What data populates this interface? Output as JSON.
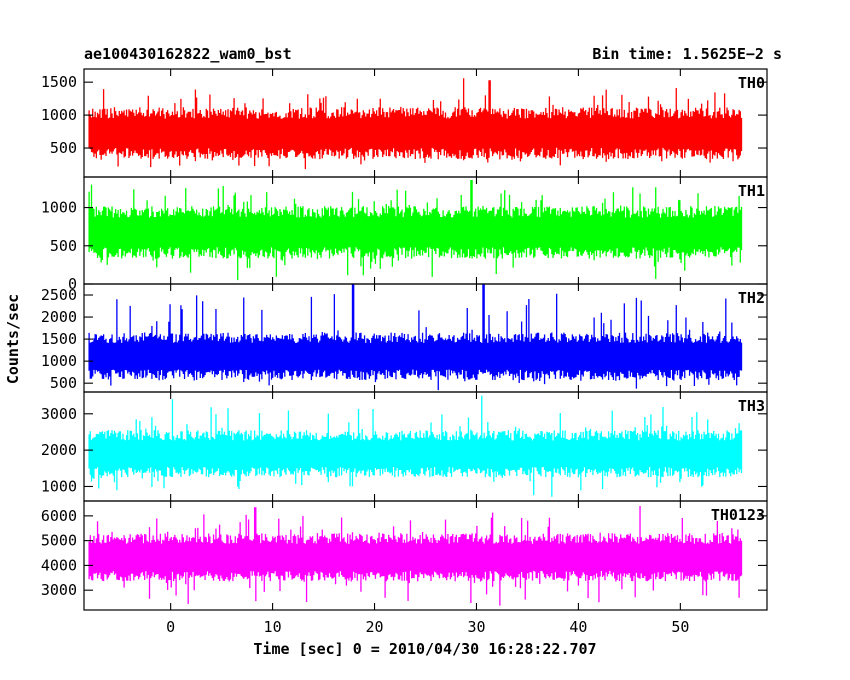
{
  "header": {
    "title": "ae100430162822_wam0_bst",
    "bin_time": "Bin time: 1.5625E−2 s"
  },
  "chart_data": {
    "type": "line",
    "title": "ae100430162822_wam0_bst",
    "subtitle": "Bin time: 1.5625E−2 s",
    "xlabel": "Time [sec] 0 = 2010/04/30 16:28:22.707",
    "ylabel": "Counts/sec",
    "xlim": [
      -8.5,
      58.5
    ],
    "x_range_data": [
      -8.0,
      56.0
    ],
    "x_ticks": [
      0,
      10,
      20,
      30,
      40,
      50
    ],
    "x_tick_labels": [
      "0",
      "10",
      "20",
      "30",
      "40",
      "50"
    ],
    "grid": false,
    "legend": "none",
    "panels": [
      {
        "name": "TH0",
        "color": "#ff0000",
        "ylim": [
          60,
          1700
        ],
        "y_ticks": [
          500,
          1000,
          1500
        ],
        "y_tick_labels": [
          "500",
          "1000",
          "1500"
        ],
        "typical_high": 1120,
        "typical_low": 330,
        "peak_max": 1560,
        "dip_min": 165,
        "notable": [
          [
            0.0,
            480
          ],
          [
            28.7,
            1560
          ],
          [
            31.3,
            1530
          ]
        ]
      },
      {
        "name": "TH1",
        "color": "#00ff00",
        "ylim": [
          0,
          1400
        ],
        "y_ticks": [
          0,
          500,
          1000
        ],
        "y_tick_labels": [
          "0",
          "500",
          "1000"
        ],
        "typical_high": 1020,
        "typical_low": 330,
        "peak_max": 1380,
        "dip_min": 15,
        "notable": [
          [
            -7.8,
            1300
          ],
          [
            29.5,
            1360
          ]
        ]
      },
      {
        "name": "TH2",
        "color": "#0000ff",
        "ylim": [
          300,
          2750
        ],
        "y_ticks": [
          500,
          1000,
          1500,
          2000,
          2500
        ],
        "y_tick_labels": [
          "500",
          "1000",
          "1500",
          "2000",
          "2500"
        ],
        "typical_high": 1650,
        "typical_low": 570,
        "peak_max": 2750,
        "dip_min": 330,
        "notable": [
          [
            17.9,
            2740
          ],
          [
            30.7,
            2740
          ],
          [
            44.5,
            2310
          ],
          [
            54.5,
            2420
          ]
        ]
      },
      {
        "name": "TH3",
        "color": "#00ffff",
        "ylim": [
          600,
          3600
        ],
        "y_ticks": [
          1000,
          2000,
          3000
        ],
        "y_tick_labels": [
          "1000",
          "2000",
          "3000"
        ],
        "typical_high": 2550,
        "typical_low": 1250,
        "peak_max": 3560,
        "dip_min": 700,
        "notable": [
          [
            0.2,
            3400
          ],
          [
            30.5,
            3500
          ]
        ]
      },
      {
        "name": "TH0123",
        "color": "#ff00ff",
        "ylim": [
          2200,
          6600
        ],
        "y_ticks": [
          3000,
          4000,
          5000,
          6000
        ],
        "y_tick_labels": [
          "3000",
          "4000",
          "5000",
          "6000"
        ],
        "typical_high": 5300,
        "typical_low": 3350,
        "peak_max": 6450,
        "dip_min": 2300,
        "notable": [
          [
            0.0,
            3500
          ],
          [
            8.3,
            6350
          ],
          [
            46.0,
            6400
          ]
        ]
      }
    ]
  }
}
